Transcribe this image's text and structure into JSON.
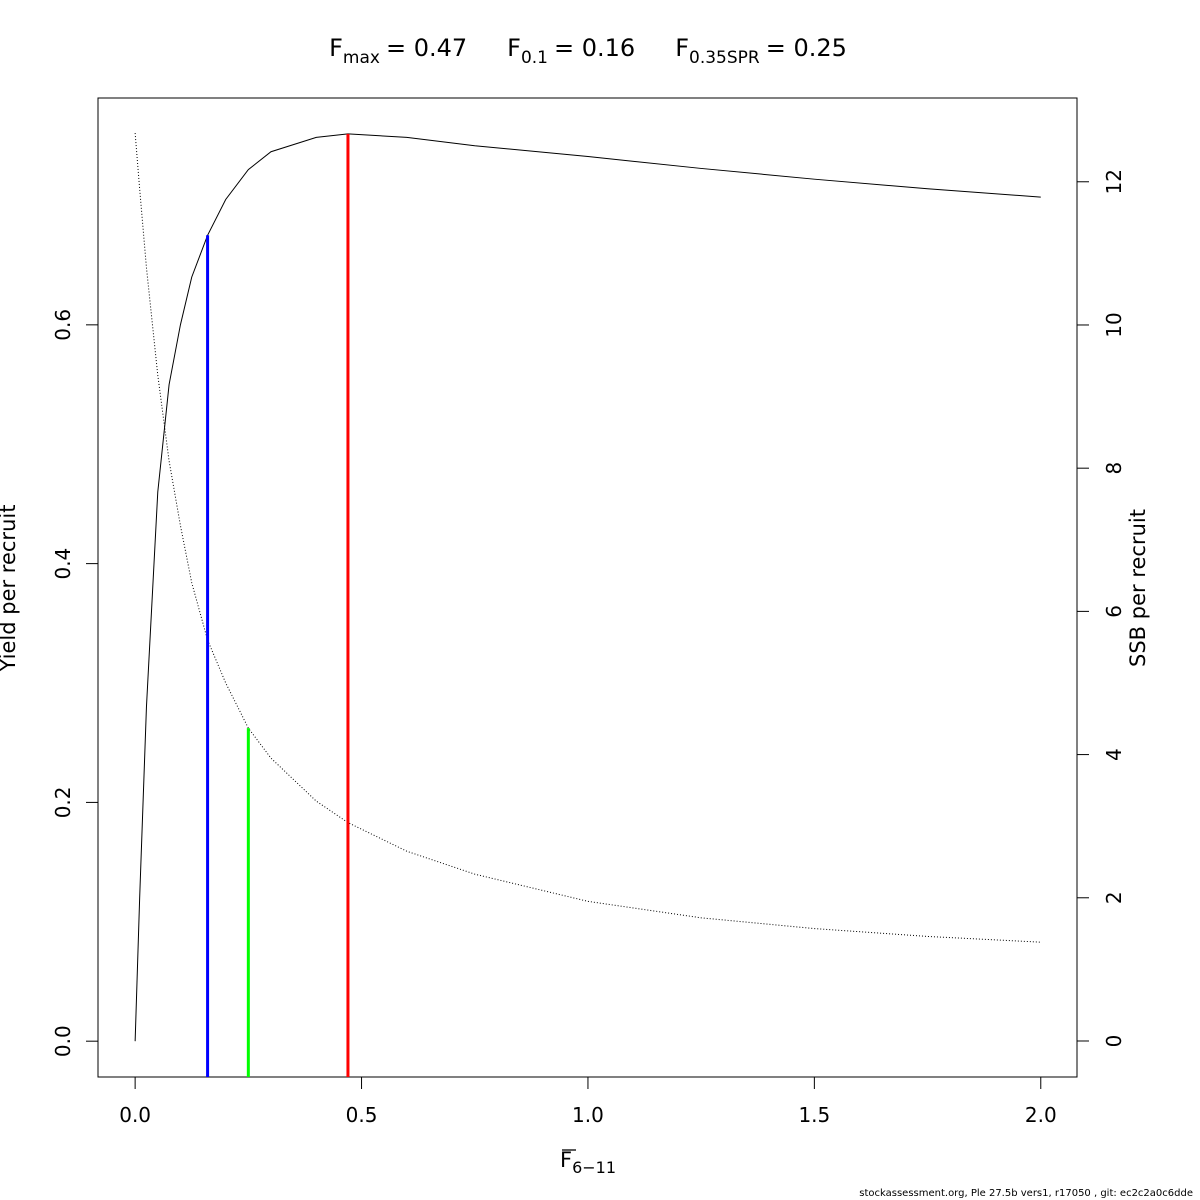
{
  "chart_data": {
    "type": "line",
    "title": [
      {
        "base": "F",
        "sub": "max",
        "rest": "= 0.47"
      },
      {
        "base": "F",
        "sub": "0.1",
        "rest": "= 0.16"
      },
      {
        "base": "F",
        "sub": "0.35SPR",
        "rest": "= 0.25"
      }
    ],
    "x_label": {
      "base": "F",
      "sub": "6−11"
    },
    "y_label": "Yield per recruit",
    "y2_label": "SSB per recruit",
    "footer": "stockassessment.org, Ple  27.5b  vers1, r17050 , git: ec2c2a0c6dde",
    "x": [
      0,
      0.01,
      0.025,
      0.05,
      0.075,
      0.1,
      0.125,
      0.16,
      0.2,
      0.25,
      0.3,
      0.4,
      0.47,
      0.6,
      0.75,
      1.0,
      1.25,
      1.5,
      1.75,
      2.0
    ],
    "series": [
      {
        "name": "Yield per recruit",
        "color": "#000000",
        "style": "solid",
        "values": [
          0,
          0.12,
          0.28,
          0.46,
          0.55,
          0.6,
          0.64,
          0.675,
          0.705,
          0.73,
          0.745,
          0.757,
          0.76,
          0.757,
          0.75,
          0.741,
          0.731,
          0.722,
          0.714,
          0.707
        ]
      },
      {
        "name": "SSB per recruit",
        "color": "#000000",
        "style": "dotted",
        "axis": "y2",
        "values": [
          12.68,
          11.9,
          10.8,
          9.3,
          8.1,
          7.2,
          6.4,
          5.6,
          5.0,
          4.37,
          3.95,
          3.35,
          3.05,
          2.65,
          2.33,
          1.95,
          1.72,
          1.57,
          1.46,
          1.38
        ]
      }
    ],
    "reference_lines": [
      {
        "x": 0.16,
        "y": 0.675,
        "color": "#0000ff"
      },
      {
        "x": 0.25,
        "y": 4.37,
        "axis": "y2",
        "color": "#00ff00"
      },
      {
        "x": 0.47,
        "y": 0.76,
        "color": "#ff0000"
      }
    ],
    "xlim": [
      -0.082,
      2.08
    ],
    "ylim": [
      -0.03,
      0.79
    ],
    "y2lim": [
      -0.503,
      13.17
    ],
    "xticks": [
      {
        "value": 0,
        "label": "0.0"
      },
      0.5,
      {
        "value": 1,
        "label": "1.0"
      },
      1.5,
      {
        "value": 2,
        "label": "2.0"
      }
    ],
    "yticks": [
      {
        "value": 0,
        "label": "0.0"
      },
      0.2,
      0.4,
      0.6
    ],
    "y2ticks": [
      0,
      2,
      4,
      6,
      8,
      10,
      12
    ]
  }
}
